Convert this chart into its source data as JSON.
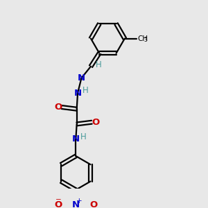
{
  "bg_color": "#e8e8e8",
  "bond_color": "#000000",
  "nitrogen_color": "#0000cc",
  "oxygen_color": "#cc0000",
  "hydrogen_color": "#4a9a9a",
  "figsize": [
    3.0,
    3.0
  ],
  "dpi": 100,
  "xlim": [
    0,
    10
  ],
  "ylim": [
    0,
    10
  ]
}
